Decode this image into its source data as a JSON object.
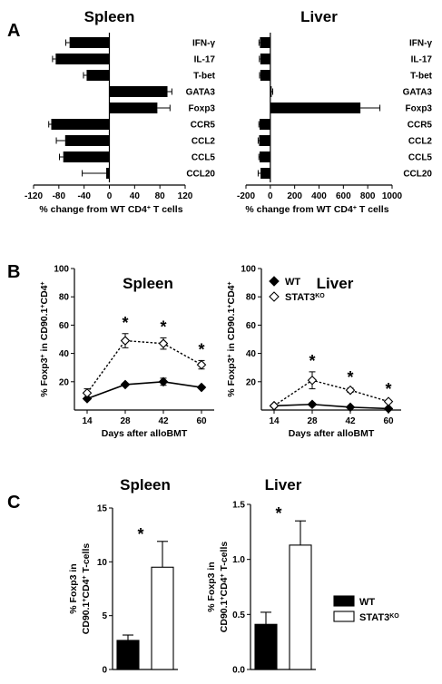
{
  "panels": {
    "A": "A",
    "B": "B",
    "C": "C"
  },
  "chart_data": [
    {
      "panel": "A",
      "type": "bar",
      "orientation": "horizontal",
      "title": "Spleen",
      "xlabel": "% change from WT CD4+ T cells",
      "categories": [
        "IFN-γ",
        "IL-17",
        "T-bet",
        "GATA3",
        "Foxp3",
        "CCR5",
        "CCL2",
        "CCL5",
        "CCL20"
      ],
      "values": [
        -63,
        -85,
        -36,
        92,
        76,
        -92,
        -70,
        -73,
        -5
      ],
      "errors": [
        6,
        5,
        5,
        7,
        20,
        4,
        14,
        6,
        38
      ],
      "xlim": [
        -120,
        120
      ],
      "xticks": [
        -120,
        -80,
        -40,
        0,
        40,
        80,
        120
      ]
    },
    {
      "panel": "A",
      "type": "bar",
      "orientation": "horizontal",
      "title": "Liver",
      "xlabel": "% change from WT CD4+ T cells",
      "categories": [
        "IFN-γ",
        "IL-17",
        "T-bet",
        "GATA3",
        "Foxp3",
        "CCR5",
        "CCL2",
        "CCL5",
        "CCL20"
      ],
      "values": [
        -85,
        -82,
        -82,
        5,
        740,
        -88,
        -92,
        -88,
        -80
      ],
      "errors": [
        8,
        8,
        6,
        15,
        160,
        6,
        8,
        6,
        20
      ],
      "xlim": [
        -200,
        1000
      ],
      "xticks": [
        -200,
        0,
        200,
        400,
        600,
        800,
        1000
      ]
    },
    {
      "panel": "B",
      "type": "line",
      "title": "Spleen",
      "xlabel": "Days after alloBMT",
      "ylabel": "% Foxp3+ in CD90.1+CD4+",
      "x": [
        14,
        28,
        42,
        60
      ],
      "series": [
        {
          "name": "WT",
          "values": [
            8,
            18,
            20,
            16
          ],
          "errors": [
            1,
            1,
            2.5,
            1
          ]
        },
        {
          "name": "STAT3KO",
          "values": [
            12,
            49,
            47,
            32
          ],
          "errors": [
            3,
            5,
            4,
            3
          ]
        }
      ],
      "stars": [
        "",
        "*",
        "*",
        "*"
      ],
      "ylim": [
        0,
        100
      ],
      "yticks": [
        20,
        40,
        60,
        80,
        100
      ]
    },
    {
      "panel": "B",
      "type": "line",
      "title": "Liver",
      "xlabel": "Days after alloBMT",
      "ylabel": "% Foxp3+ in CD90.1+CD4+",
      "x": [
        14,
        28,
        42,
        60
      ],
      "series": [
        {
          "name": "WT",
          "values": [
            3,
            4,
            2,
            1
          ],
          "errors": [
            1,
            1,
            0.5,
            0.5
          ]
        },
        {
          "name": "STAT3KO",
          "values": [
            3,
            21,
            14,
            6
          ],
          "errors": [
            1,
            6,
            1.5,
            1
          ]
        }
      ],
      "stars": [
        "",
        "*",
        "*",
        "*"
      ],
      "ylim": [
        0,
        100
      ],
      "yticks": [
        20,
        40,
        60,
        80,
        100
      ],
      "legend": "top-left"
    },
    {
      "panel": "C",
      "type": "bar",
      "title": "Spleen",
      "ylabel": "% Foxp3 in CD90.1+CD4+ T-cells",
      "categories": [
        "WT",
        "STAT3KO"
      ],
      "values": [
        2.7,
        9.5
      ],
      "errors": [
        0.5,
        2.4
      ],
      "ylim": [
        0,
        15
      ],
      "yticks": [
        0,
        5,
        10,
        15
      ],
      "star": "*"
    },
    {
      "panel": "C",
      "type": "bar",
      "title": "Liver",
      "ylabel": "% Foxp3 in CD90.1+CD4+ T-cells",
      "categories": [
        "WT",
        "STAT3KO"
      ],
      "values": [
        0.41,
        1.13
      ],
      "errors": [
        0.11,
        0.22
      ],
      "ylim": [
        0,
        1.5
      ],
      "yticks": [
        "0.0",
        "0.5",
        "1.0",
        "1.5"
      ],
      "star": "*",
      "legend": "right"
    }
  ],
  "colors": {
    "wt": "#000000",
    "ko": "#ffffff",
    "axis": "#000000"
  }
}
